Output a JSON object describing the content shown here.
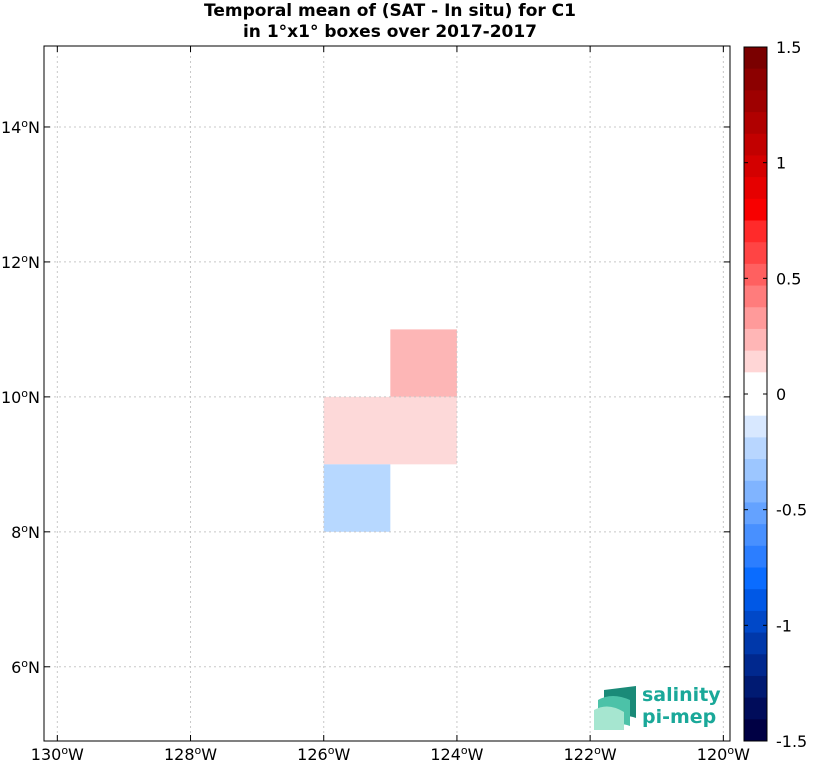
{
  "chart_data": {
    "type": "heatmap",
    "title_line1": "Temporal mean of (SAT - In situ) for C1",
    "title_line2": "in 1°x1° boxes over 2017-2017",
    "x_range": [
      -130.2,
      -119.9
    ],
    "y_range": [
      4.9,
      15.2
    ],
    "x_ticks": [
      {
        "value": -130,
        "deg": "130",
        "hemi": "W"
      },
      {
        "value": -128,
        "deg": "128",
        "hemi": "W"
      },
      {
        "value": -126,
        "deg": "126",
        "hemi": "W"
      },
      {
        "value": -124,
        "deg": "124",
        "hemi": "W"
      },
      {
        "value": -122,
        "deg": "122",
        "hemi": "W"
      },
      {
        "value": -120,
        "deg": "120",
        "hemi": "W"
      }
    ],
    "y_ticks": [
      {
        "value": 6,
        "deg": "6",
        "hemi": "N"
      },
      {
        "value": 8,
        "deg": "8",
        "hemi": "N"
      },
      {
        "value": 10,
        "deg": "10",
        "hemi": "N"
      },
      {
        "value": 12,
        "deg": "12",
        "hemi": "N"
      },
      {
        "value": 14,
        "deg": "14",
        "hemi": "N"
      }
    ],
    "grid": true,
    "cells": [
      {
        "lon_min": -125,
        "lon_max": -124,
        "lat_min": 10,
        "lat_max": 11,
        "value": 0.25,
        "color": "#fdb6b6"
      },
      {
        "lon_min": -126,
        "lon_max": -124,
        "lat_min": 9,
        "lat_max": 10,
        "value": 0.12,
        "color": "#fdd9d9"
      },
      {
        "lon_min": -126,
        "lon_max": -125,
        "lat_min": 8,
        "lat_max": 9,
        "value": -0.2,
        "color": "#b7d8ff"
      }
    ],
    "colorbar": {
      "min": -1.5,
      "max": 1.5,
      "ticks": [
        {
          "value": 1.5,
          "label": "1.5"
        },
        {
          "value": 1,
          "label": "1"
        },
        {
          "value": 0.5,
          "label": "0.5"
        },
        {
          "value": 0,
          "label": "0"
        },
        {
          "value": -0.5,
          "label": "-0.5"
        },
        {
          "value": -1,
          "label": "-1"
        },
        {
          "value": -1.5,
          "label": "-1.5"
        }
      ],
      "colors_top_to_bottom": [
        "#7a0000",
        "#8c0000",
        "#9e0000",
        "#b00000",
        "#c20000",
        "#d40000",
        "#e60000",
        "#f80000",
        "#ff2a2a",
        "#ff4444",
        "#ff6060",
        "#ff7c7c",
        "#ff9a9a",
        "#ffb6b6",
        "#ffd6d6",
        "#ffffff",
        "#ffffff",
        "#d8e8ff",
        "#b8d6ff",
        "#9cc6ff",
        "#80b4ff",
        "#64a2ff",
        "#4890ff",
        "#2c7eff",
        "#0a6cff",
        "#0058e6",
        "#0048c8",
        "#0038aa",
        "#00288e",
        "#001a72",
        "#000c5a",
        "#000044"
      ]
    }
  },
  "logo": {
    "line1": "salinity",
    "line2": "pi-mep"
  }
}
